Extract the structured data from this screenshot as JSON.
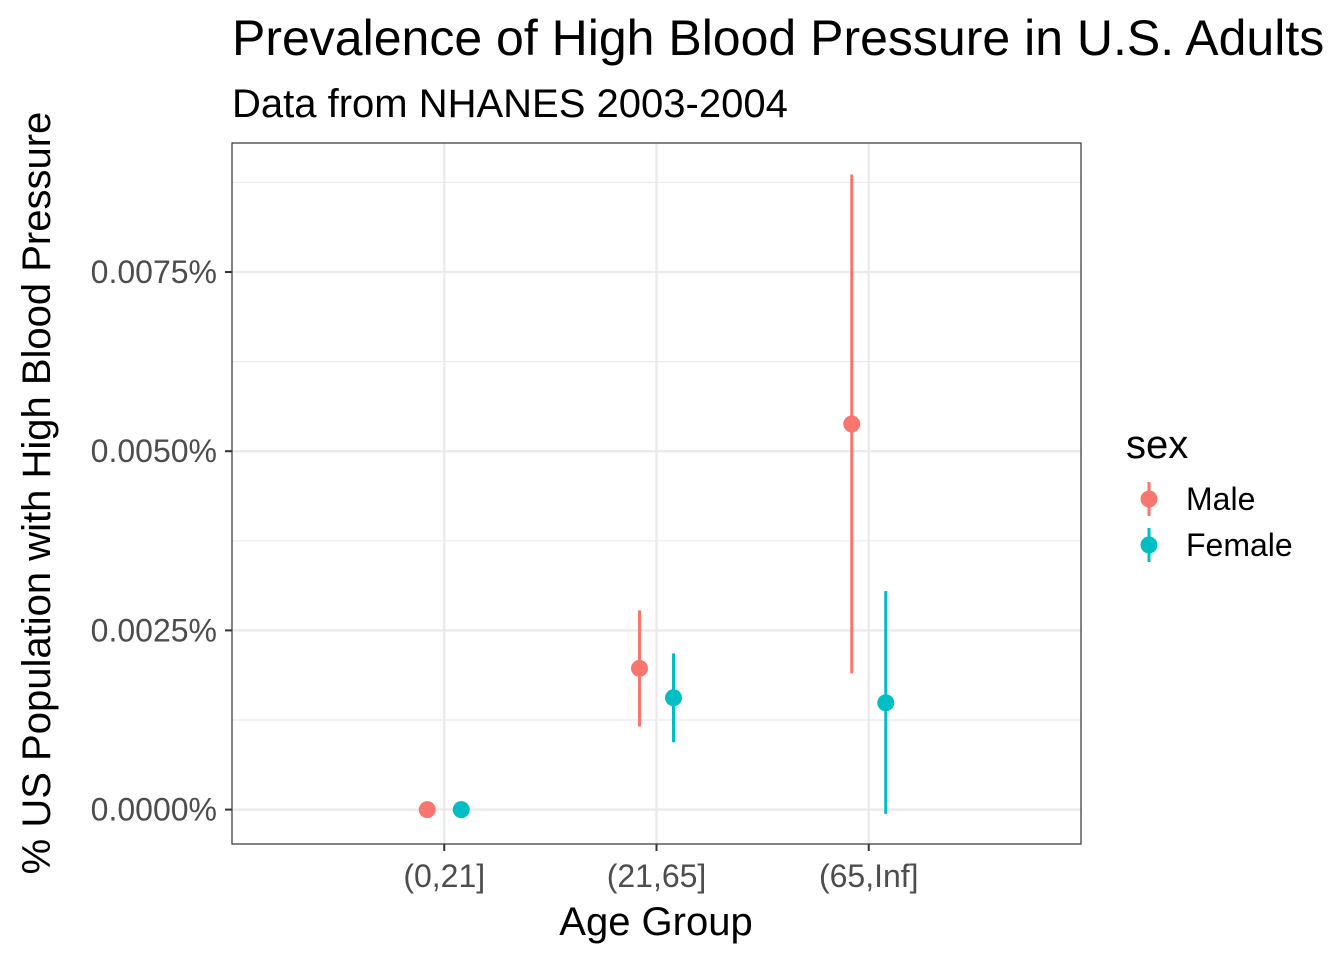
{
  "chart_data": {
    "type": "scatter",
    "title": "Prevalence of High Blood Pressure in U.S. Adults",
    "subtitle": "Data from NHANES 2003-2004",
    "xlabel": "Age Group",
    "ylabel": "% US Population with High Blood Pressure",
    "categories": [
      "(0,21]",
      "(21,65]",
      "(65,Inf]"
    ],
    "ylim": [
      -0.00048,
      0.0093
    ],
    "yticks": [
      0.0,
      0.0025,
      0.005,
      0.0075
    ],
    "ytick_labels": [
      "0.0000%",
      "0.0025%",
      "0.0050%",
      "0.0075%"
    ],
    "y_minor_ticks": [
      0.00125,
      0.00375,
      0.00625,
      0.00875
    ],
    "grid": true,
    "legend": {
      "title": "sex",
      "position": "right"
    },
    "series": [
      {
        "name": "Male",
        "color": "#F8766D",
        "values": [
          0.0,
          0.00197,
          0.00538
        ],
        "lower": [
          0.0,
          0.00116,
          0.0019
        ],
        "upper": [
          0.0,
          0.00278,
          0.00886
        ]
      },
      {
        "name": "Female",
        "color": "#00BFC4",
        "values": [
          0.0,
          0.00156,
          0.00149
        ],
        "lower": [
          0.0,
          0.00094,
          -6e-05
        ],
        "upper": [
          0.0,
          0.00218,
          0.00305
        ]
      }
    ]
  }
}
